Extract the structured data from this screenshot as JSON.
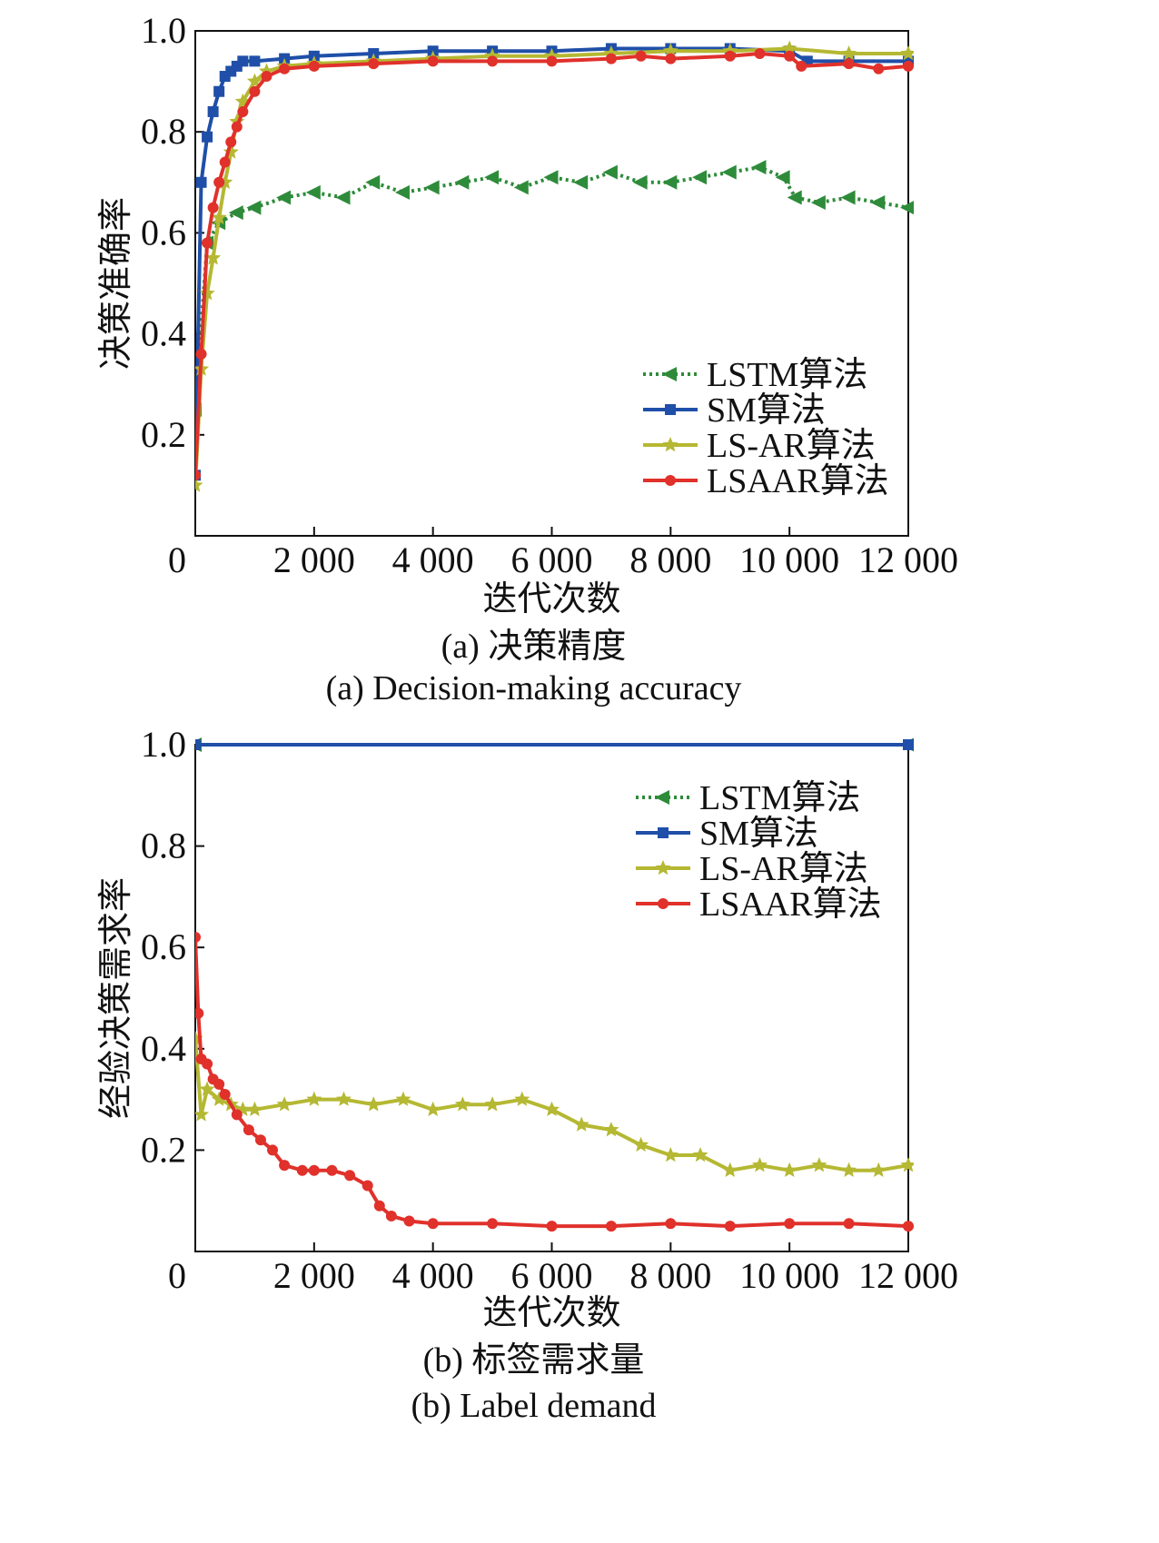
{
  "chart_data": [
    {
      "type": "line",
      "title": "",
      "caption_cn": "(a) 决策精度",
      "caption_en": "(a) Decision-making accuracy",
      "xlabel": "迭代次数",
      "ylabel": "决策准确率",
      "xlim": [
        0,
        12000
      ],
      "ylim": [
        0,
        1.0
      ],
      "xticks": [
        0,
        2000,
        4000,
        6000,
        8000,
        10000,
        12000
      ],
      "xtick_labels": [
        "0",
        "2 000",
        "4 000",
        "6 000",
        "8 000",
        "10 000",
        "12 000"
      ],
      "yticks": [
        0.2,
        0.4,
        0.6,
        0.8,
        1.0
      ],
      "ytick_labels": [
        "0.2",
        "0.4",
        "0.6",
        "0.8",
        "1.0"
      ],
      "legend_position": "lower-right",
      "series": [
        {
          "name": "LSTM算法",
          "color": "#2e8b3a",
          "marker": "triangle-left",
          "line": "dotted",
          "x": [
            0,
            200,
            400,
            700,
            1000,
            1500,
            2000,
            2500,
            3000,
            3500,
            4000,
            4500,
            5000,
            5500,
            6000,
            6500,
            7000,
            7500,
            8000,
            8500,
            9000,
            9500,
            9900,
            10100,
            10500,
            11000,
            11500,
            12000
          ],
          "y": [
            0.25,
            0.58,
            0.62,
            0.64,
            0.65,
            0.67,
            0.68,
            0.67,
            0.7,
            0.68,
            0.69,
            0.7,
            0.71,
            0.69,
            0.71,
            0.7,
            0.72,
            0.7,
            0.7,
            0.71,
            0.72,
            0.73,
            0.71,
            0.67,
            0.66,
            0.67,
            0.66,
            0.65
          ]
        },
        {
          "name": "SM算法",
          "color": "#1f4fa8",
          "marker": "square",
          "line": "solid",
          "x": [
            0,
            100,
            200,
            300,
            400,
            500,
            600,
            700,
            800,
            1000,
            1500,
            2000,
            3000,
            4000,
            5000,
            6000,
            7000,
            8000,
            9000,
            10000,
            10300,
            11000,
            12000
          ],
          "y": [
            0.12,
            0.7,
            0.79,
            0.84,
            0.88,
            0.91,
            0.92,
            0.93,
            0.94,
            0.94,
            0.945,
            0.95,
            0.955,
            0.96,
            0.96,
            0.96,
            0.965,
            0.965,
            0.965,
            0.96,
            0.94,
            0.94,
            0.94
          ]
        },
        {
          "name": "LS-AR算法",
          "color": "#b5b832",
          "marker": "star",
          "line": "solid",
          "x": [
            0,
            100,
            200,
            300,
            400,
            500,
            600,
            700,
            800,
            1000,
            1200,
            1500,
            2000,
            3000,
            4000,
            5000,
            6000,
            7000,
            8000,
            9000,
            10000,
            11000,
            12000
          ],
          "y": [
            0.1,
            0.33,
            0.48,
            0.55,
            0.63,
            0.7,
            0.76,
            0.82,
            0.86,
            0.9,
            0.92,
            0.93,
            0.935,
            0.94,
            0.945,
            0.95,
            0.95,
            0.955,
            0.96,
            0.96,
            0.965,
            0.955,
            0.955
          ]
        },
        {
          "name": "LSAAR算法",
          "color": "#e0312b",
          "marker": "circle",
          "line": "solid",
          "x": [
            0,
            100,
            200,
            300,
            400,
            500,
            600,
            700,
            800,
            1000,
            1200,
            1500,
            2000,
            3000,
            4000,
            5000,
            6000,
            7000,
            7500,
            8000,
            9000,
            9500,
            10000,
            10200,
            11000,
            11500,
            12000
          ],
          "y": [
            0.12,
            0.36,
            0.58,
            0.65,
            0.7,
            0.74,
            0.78,
            0.81,
            0.84,
            0.88,
            0.91,
            0.925,
            0.93,
            0.935,
            0.94,
            0.94,
            0.94,
            0.945,
            0.95,
            0.945,
            0.95,
            0.955,
            0.95,
            0.93,
            0.935,
            0.925,
            0.93
          ]
        }
      ]
    },
    {
      "type": "line",
      "title": "",
      "caption_cn": "(b) 标签需求量",
      "caption_en": "(b) Label demand",
      "xlabel": "迭代次数",
      "ylabel": "经验决策需求率",
      "xlim": [
        0,
        12000
      ],
      "ylim": [
        0,
        1.0
      ],
      "xticks": [
        0,
        2000,
        4000,
        6000,
        8000,
        10000,
        12000
      ],
      "xtick_labels": [
        "0",
        "2 000",
        "4 000",
        "6 000",
        "8 000",
        "10 000",
        "12 000"
      ],
      "yticks": [
        0.2,
        0.4,
        0.6,
        0.8,
        1.0
      ],
      "ytick_labels": [
        "0.2",
        "0.4",
        "0.6",
        "0.8",
        "1.0"
      ],
      "legend_position": "top-right",
      "series": [
        {
          "name": "LSTM算法",
          "color": "#2e8b3a",
          "marker": "triangle-left",
          "line": "dotted",
          "x": [
            0,
            12000
          ],
          "y": [
            1.0,
            1.0
          ]
        },
        {
          "name": "SM算法",
          "color": "#1f4fa8",
          "marker": "square",
          "line": "solid",
          "x": [
            0,
            12000
          ],
          "y": [
            1.0,
            1.0
          ]
        },
        {
          "name": "LS-AR算法",
          "color": "#b5b832",
          "marker": "star",
          "line": "solid",
          "x": [
            0,
            100,
            200,
            400,
            600,
            800,
            1000,
            1500,
            2000,
            2500,
            3000,
            3500,
            4000,
            4500,
            5000,
            5500,
            6000,
            6500,
            7000,
            7500,
            8000,
            8500,
            9000,
            9500,
            10000,
            10500,
            11000,
            11500,
            12000
          ],
          "y": [
            0.42,
            0.27,
            0.32,
            0.3,
            0.29,
            0.28,
            0.28,
            0.29,
            0.3,
            0.3,
            0.29,
            0.3,
            0.28,
            0.29,
            0.29,
            0.3,
            0.28,
            0.25,
            0.24,
            0.21,
            0.19,
            0.19,
            0.16,
            0.17,
            0.16,
            0.17,
            0.16,
            0.16,
            0.17
          ]
        },
        {
          "name": "LSAAR算法",
          "color": "#e0312b",
          "marker": "circle",
          "line": "solid",
          "x": [
            0,
            50,
            100,
            200,
            300,
            400,
            500,
            700,
            900,
            1100,
            1300,
            1500,
            1800,
            2000,
            2300,
            2600,
            2900,
            3100,
            3300,
            3600,
            4000,
            5000,
            6000,
            7000,
            8000,
            9000,
            10000,
            11000,
            12000
          ],
          "y": [
            0.62,
            0.47,
            0.38,
            0.37,
            0.34,
            0.33,
            0.31,
            0.27,
            0.24,
            0.22,
            0.2,
            0.17,
            0.16,
            0.16,
            0.16,
            0.15,
            0.13,
            0.09,
            0.07,
            0.06,
            0.055,
            0.055,
            0.05,
            0.05,
            0.055,
            0.05,
            0.055,
            0.055,
            0.05
          ]
        }
      ]
    }
  ]
}
